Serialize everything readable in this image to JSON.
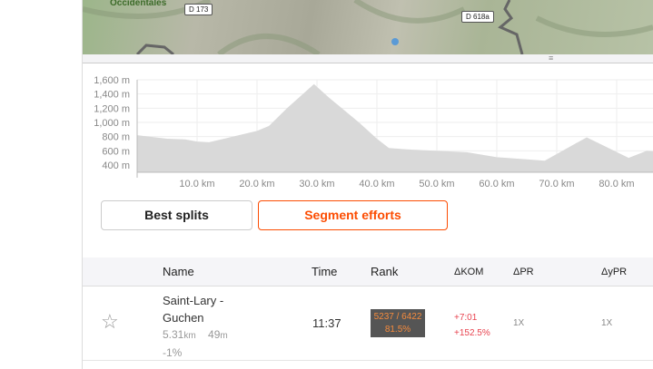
{
  "map": {
    "labels": [
      "Occidentales"
    ],
    "roads": [
      "D 173",
      "D 618a"
    ]
  },
  "chart_data": {
    "type": "area",
    "xlabel": "",
    "ylabel": "",
    "x_ticks": [
      "10.0 km",
      "20.0 km",
      "30.0 km",
      "40.0 km",
      "50.0 km",
      "60.0 km",
      "70.0 km",
      "80.0 km"
    ],
    "y_ticks": [
      "400 m",
      "600 m",
      "800 m",
      "1,000 m",
      "1,200 m",
      "1,400 m",
      "1,600 m"
    ],
    "xlim": [
      0,
      86.5
    ],
    "ylim": [
      300,
      1650
    ],
    "grid": true,
    "x": [
      0,
      5,
      8,
      10,
      12,
      15,
      20,
      22,
      25,
      29.5,
      32,
      37,
      40,
      42,
      45,
      50,
      55,
      60,
      65,
      68,
      75,
      82,
      85,
      86.5
    ],
    "y": [
      820,
      770,
      760,
      730,
      720,
      780,
      880,
      950,
      1200,
      1540,
      1350,
      1000,
      770,
      640,
      620,
      600,
      580,
      510,
      480,
      460,
      790,
      500,
      600,
      590
    ],
    "color": "#d9d9d9"
  },
  "buttons": {
    "best_splits": "Best splits",
    "segment_efforts": "Segment efforts"
  },
  "table": {
    "headers": {
      "name": "Name",
      "time": "Time",
      "rank": "Rank",
      "dkom": "ΔKOM",
      "dpr": "ΔPR",
      "dypr": "ΔyPR"
    },
    "rows": [
      {
        "name": "Saint-Lary - Guchen",
        "distance": "5.31",
        "distance_unit": "km",
        "elev": "49",
        "elev_unit": "m",
        "grade": "-1%",
        "time": "11:37",
        "rank": "5237 / 6422",
        "percentile": "81.5%",
        "dkom_time": "+7:01",
        "dkom_pct": "+152.5%",
        "dpr": "1X",
        "dypr": "1X"
      }
    ]
  },
  "colors": {
    "accent": "#fc4c02",
    "rank_text": "#f68b3d",
    "delta": "#e8434f"
  }
}
